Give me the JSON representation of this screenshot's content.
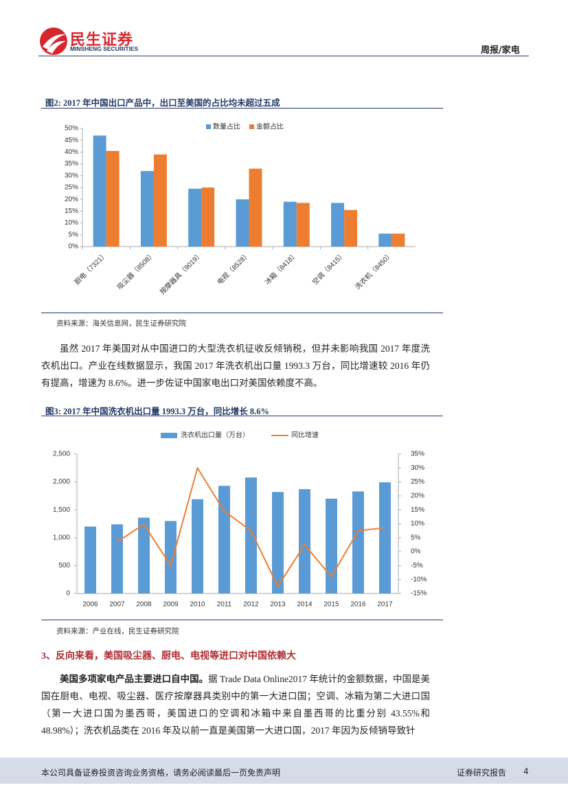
{
  "header": {
    "logo_cn": "民生证券",
    "logo_en": "MINSHENG SECURITIES",
    "section": "周报/家电"
  },
  "chart_data": [
    {
      "type": "bar",
      "title": "图2: 2017 年中国出口产品中，出口至美国的占比均未超过五成",
      "categories": [
        "厨电（7321）",
        "吸尘器（8508）",
        "按摩器具（9019）",
        "电视（8528）",
        "冰箱（8418）",
        "空调（8415）",
        "洗衣机（8450）"
      ],
      "series": [
        {
          "name": "数量占比",
          "color": "#5b9bd5",
          "values": [
            47,
            32,
            24.5,
            20,
            19,
            18.5,
            5.5
          ]
        },
        {
          "name": "金额占比",
          "color": "#ed7d31",
          "values": [
            40.5,
            39,
            25,
            33,
            18.5,
            15.5,
            5.5
          ]
        }
      ],
      "ylim": [
        0,
        50
      ],
      "yticks": [
        {
          "value": 0,
          "label": "0%"
        },
        {
          "value": 5,
          "label": "5%"
        },
        {
          "value": 10,
          "label": "10%"
        },
        {
          "value": 15,
          "label": "15%"
        },
        {
          "value": 20,
          "label": "20%"
        },
        {
          "value": 25,
          "label": "25%"
        },
        {
          "value": 30,
          "label": "30%"
        },
        {
          "value": 35,
          "label": "35%"
        },
        {
          "value": 40,
          "label": "40%"
        },
        {
          "value": 45,
          "label": "45%"
        },
        {
          "value": 50,
          "label": "50%"
        }
      ],
      "source": "资料来源：海关信息网，民生证券研究院"
    },
    {
      "type": "bar_line",
      "title": "图3: 2017 年中国洗衣机出口量 1993.3 万台，同比增长 8.6%",
      "categories": [
        "2006",
        "2007",
        "2008",
        "2009",
        "2010",
        "2011",
        "2012",
        "2013",
        "2014",
        "2015",
        "2016",
        "2017"
      ],
      "series": [
        {
          "name": "洗衣机出口量（万台）",
          "color": "#5b9bd5",
          "type": "bar",
          "values": [
            1200,
            1240,
            1360,
            1300,
            1690,
            1930,
            2080,
            1820,
            1870,
            1700,
            1830,
            1993.3
          ]
        },
        {
          "name": "同比增速",
          "color": "#ed7d31",
          "type": "line",
          "axis": "y2",
          "values": [
            null,
            3.5,
            9.8,
            -5,
            30,
            14.5,
            7.5,
            -12.5,
            2.5,
            -9,
            7.5,
            8.6
          ]
        }
      ],
      "ylim": [
        0,
        2500
      ],
      "yticks": [
        0,
        500,
        {
          "value": 1000,
          "label": "1,000"
        },
        {
          "value": 1500,
          "label": "1,500"
        },
        {
          "value": 2000,
          "label": "2,000"
        },
        {
          "value": 2500,
          "label": "2,500"
        }
      ],
      "y2lim": [
        -15,
        35
      ],
      "y2ticks": [
        {
          "value": -15,
          "label": "-15%"
        },
        {
          "value": -10,
          "label": "-10%"
        },
        {
          "value": -5,
          "label": "-5%"
        },
        {
          "value": 0,
          "label": "0%"
        },
        {
          "value": 5,
          "label": "5%"
        },
        {
          "value": 10,
          "label": "10%"
        },
        {
          "value": 15,
          "label": "15%"
        },
        {
          "value": 20,
          "label": "20%"
        },
        {
          "value": 25,
          "label": "25%"
        },
        {
          "value": 30,
          "label": "30%"
        },
        {
          "value": 35,
          "label": "35%"
        }
      ],
      "source": "资料来源：产业在线，民生证券研究院"
    }
  ],
  "paragraph_1": "虽然 2017 年美国对从中国进口的大型洗衣机征收反倾销税，但并未影响我国 2017 年度洗衣机出口。产业在线数据显示，我国 2017 年洗衣机出口量 1993.3 万台，同比增速较 2016 年仍有提高，增速为 8.6%。进一步佐证中国家电出口对美国依赖度不高。",
  "section_heading": "3、反向来看，美国吸尘器、厨电、电视等进口对中国依赖大",
  "paragraph_2": {
    "bold": "美国多项家电产品主要进口自中国。",
    "text": "据 Trade Data Online2017 年统计的金额数据，中国是美国在厨电、电视、吸尘器、医疗按摩器具类别中的第一大进口国；空调、冰箱为第二大进口国（第一大进口国为墨西哥，美国进口的空调和冰箱中来自墨西哥的比重分别 43.55%和 48.98%）；洗衣机品类在 2016 年及以前一直是美国第一大进口国，2017 年因为反倾销导致针"
  },
  "footer": {
    "disclaimer": "本公司具备证券投资咨询业务资格，请务必阅读最后一页免责声明",
    "label": "证券研究报告",
    "page": "4"
  }
}
